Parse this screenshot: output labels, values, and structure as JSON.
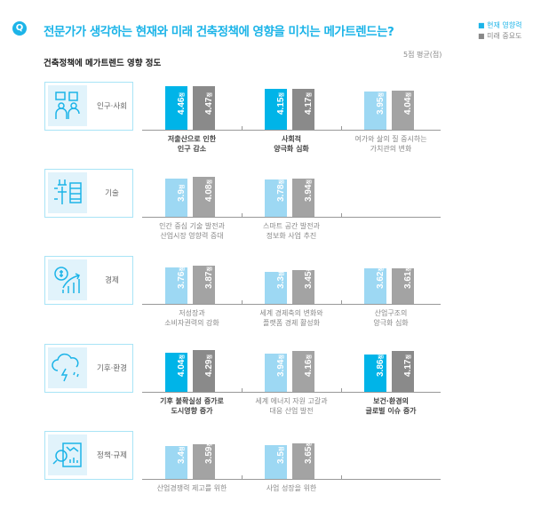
{
  "header": {
    "q_icon": "Q",
    "title": "전문가가 생각하는 현재와 미래 건축정책에 영향을 미치는 메가트렌드는?"
  },
  "chart_data": {
    "type": "bar",
    "title": "건축정책에 메가트렌드 영향 정도",
    "unit_label": "5점 평균(점)",
    "value_suffix": "점",
    "legend": [
      {
        "name": "■ 현재 영향력",
        "color": "#1cb4e8"
      },
      {
        "name": "■ 미래 중요도",
        "color": "#888888"
      }
    ],
    "colors": {
      "current_high": "#00b4e8",
      "current": "#9dd8f3",
      "future_high": "#8a8a8a",
      "future": "#a3a3a3"
    },
    "groups": [
      {
        "category": "인구·사회",
        "icon": "people-chat-icon",
        "items": [
          {
            "label": "저출산으로 인한\n인구 감소",
            "current": 4.46,
            "future": 4.47,
            "highlight": true
          },
          {
            "label": "사회적\n양극화 심화",
            "current": 4.15,
            "future": 4.17,
            "highlight": true
          },
          {
            "label": "여가와 삶의 질 중시하는\n가치관의 변화",
            "current": 3.95,
            "future": 4.04,
            "highlight": false
          }
        ]
      },
      {
        "category": "기술",
        "icon": "tech-wrench-icon",
        "items": [
          {
            "label": "인간 중심 기술 발전과\n산업시장 영향력 증대",
            "current": 3.9,
            "future": 4.08,
            "highlight": false
          },
          {
            "label": "스마트 공간 발전과\n정보화 사업 추진",
            "current": 3.78,
            "future": 3.94,
            "highlight": false
          }
        ]
      },
      {
        "category": "경제",
        "icon": "dollar-growth-icon",
        "items": [
          {
            "label": "저성장과\n소비자권력의 강화",
            "current": 3.76,
            "future": 3.87,
            "highlight": false
          },
          {
            "label": "세계 경제축의 변화와\n플랫폼 경제 활성화",
            "current": 3.3,
            "future": 3.45,
            "highlight": false
          },
          {
            "label": "산업구조의\n양극화 심화",
            "current": 3.62,
            "future": 3.61,
            "highlight": false
          }
        ]
      },
      {
        "category": "기후·환경",
        "icon": "storm-cloud-icon",
        "items": [
          {
            "label": "기후 불확실성 증가로\n도시영향 증가",
            "current": 4.04,
            "future": 4.29,
            "highlight": true
          },
          {
            "label": "세계 에너지 자원 고갈과\n대응 산업 발전",
            "current": 3.94,
            "future": 4.16,
            "highlight": false
          },
          {
            "label": "보건·환경의\n글로벌 이슈 증가",
            "current": 3.86,
            "future": 4.17,
            "highlight": true
          }
        ]
      },
      {
        "category": "정책·규제",
        "icon": "policy-chart-icon",
        "items": [
          {
            "label": "산업경쟁력 제고를 위한",
            "current": 3.4,
            "future": 3.59,
            "highlight": false
          },
          {
            "label": "사업 성장을 위한",
            "current": 3.5,
            "future": 3.65,
            "highlight": false
          }
        ]
      }
    ]
  }
}
